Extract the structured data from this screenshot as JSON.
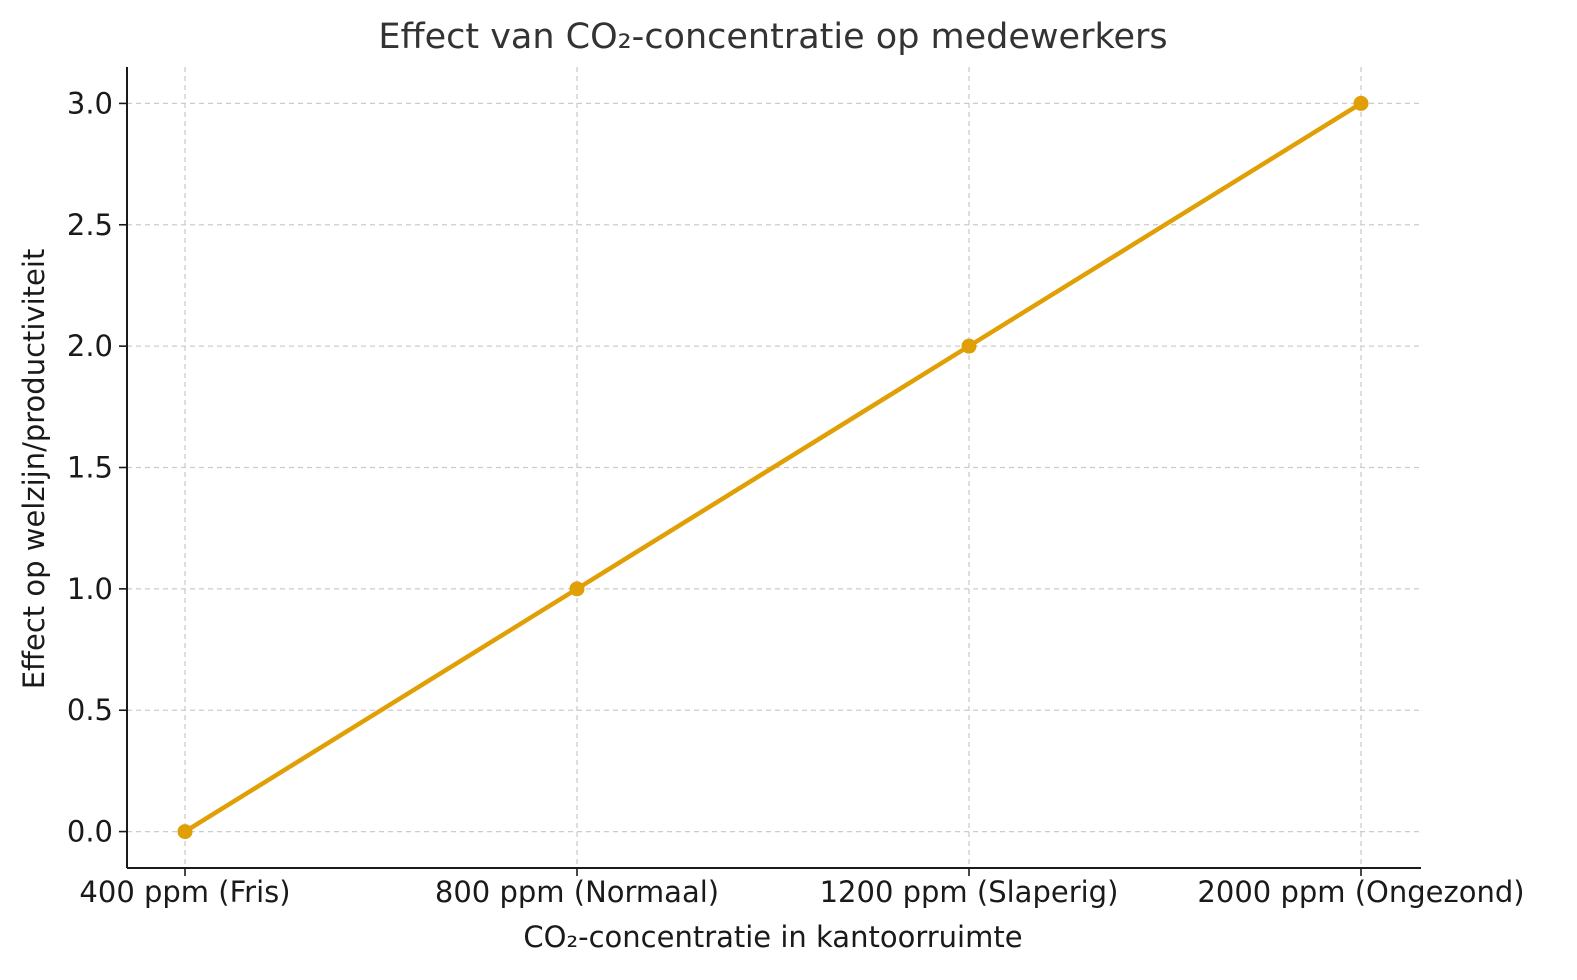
{
  "chart_data": {
    "type": "line",
    "title": "Effect van CO₂-concentratie op medewerkers",
    "xlabel": "CO₂-concentratie in kantoorruimte",
    "ylabel": "Effect op welzijn/productiviteit",
    "categories": [
      "400 ppm (Fris)",
      "800 ppm (Normaal)",
      "1200 ppm (Slaperig)",
      "2000 ppm (Ongezond)"
    ],
    "series": [
      {
        "values": [
          0,
          1,
          2,
          3
        ],
        "color": "#e09f05",
        "marker": "circle"
      }
    ],
    "ylim": [
      -0.15,
      3.15
    ],
    "yticks": [
      "0.0",
      "0.5",
      "1.0",
      "1.5",
      "2.0",
      "2.5",
      "3.0"
    ],
    "grid": true,
    "legend": "none"
  }
}
